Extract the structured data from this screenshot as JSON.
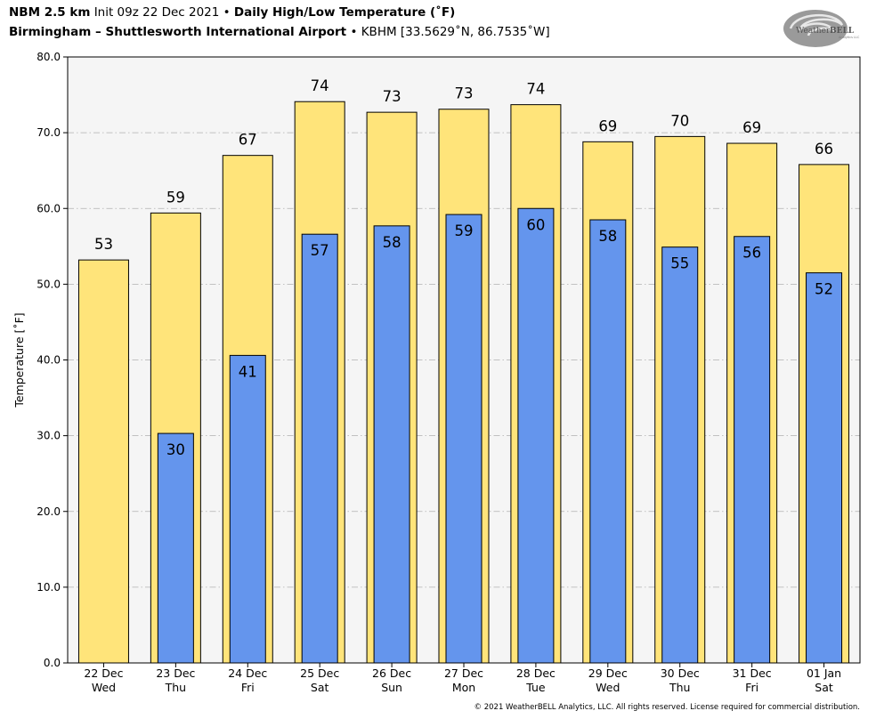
{
  "header": {
    "model": "NBM 2.5 km",
    "init": "Init 09z 22 Dec 2021",
    "sep": "•",
    "product": "Daily High/Low Temperature (˚F)",
    "location": "Birmingham – Shuttlesworth International Airport",
    "station": "KBHM [33.5629˚N, 86.7535˚W]"
  },
  "logo": {
    "text_a": "Weather",
    "text_b": "BELL",
    "sub": "Analytics LLC"
  },
  "copyright": "© 2021 WeatherBELL Analytics, LLC. All rights reserved. License required for commercial distribution.",
  "colors": {
    "high": "#ffe47a",
    "low": "#6495ed",
    "plot_bg": "#f5f5f5",
    "grid": "#b0b0b0"
  },
  "chart_data": {
    "type": "bar",
    "ylabel": "Temperature [˚F]",
    "ylim": [
      0,
      80
    ],
    "yticks": [
      "0.0",
      "10.0",
      "20.0",
      "30.0",
      "40.0",
      "50.0",
      "60.0",
      "70.0",
      "80.0"
    ],
    "grid": true,
    "categories": [
      {
        "date": "22 Dec",
        "day": "Wed"
      },
      {
        "date": "23 Dec",
        "day": "Thu"
      },
      {
        "date": "24 Dec",
        "day": "Fri"
      },
      {
        "date": "25 Dec",
        "day": "Sat"
      },
      {
        "date": "26 Dec",
        "day": "Sun"
      },
      {
        "date": "27 Dec",
        "day": "Mon"
      },
      {
        "date": "28 Dec",
        "day": "Tue"
      },
      {
        "date": "29 Dec",
        "day": "Wed"
      },
      {
        "date": "30 Dec",
        "day": "Thu"
      },
      {
        "date": "31 Dec",
        "day": "Fri"
      },
      {
        "date": "01 Jan",
        "day": "Sat"
      }
    ],
    "series": [
      {
        "key": "high",
        "values": [
          53.2,
          59.4,
          67.0,
          74.1,
          72.7,
          73.1,
          73.7,
          68.8,
          69.5,
          68.6,
          65.8
        ],
        "labels": [
          "53",
          "59",
          "67",
          "74",
          "73",
          "73",
          "74",
          "69",
          "70",
          "69",
          "66"
        ]
      },
      {
        "key": "low",
        "values": [
          null,
          30.3,
          40.6,
          56.6,
          57.7,
          59.2,
          60.0,
          58.5,
          54.9,
          56.3,
          51.5
        ],
        "labels": [
          "",
          "30",
          "41",
          "57",
          "58",
          "59",
          "60",
          "58",
          "55",
          "56",
          "52"
        ]
      }
    ]
  }
}
